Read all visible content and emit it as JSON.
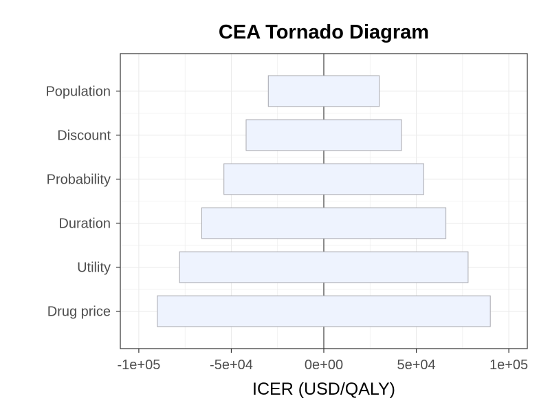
{
  "chart_data": {
    "type": "bar",
    "orientation": "horizontal",
    "title": "CEA Tornado Diagram",
    "xlabel": "ICER (USD/QALY)",
    "ylabel": "",
    "categories": [
      "Population",
      "Discount",
      "Probability",
      "Duration",
      "Utility",
      "Drug price"
    ],
    "series": [
      {
        "low": [
          -30000,
          -42000,
          -54000,
          -66000,
          -78000,
          -90000
        ],
        "high": [
          30000,
          42000,
          54000,
          66000,
          78000,
          90000
        ]
      }
    ],
    "xlim": [
      -110000,
      110000
    ],
    "xticks": [
      -100000,
      -50000,
      0,
      50000,
      100000
    ],
    "xtick_labels": [
      "-1e+05",
      "-5e+04",
      "0e+00",
      "5e+04",
      "1e+05"
    ],
    "reference_line_x": 0,
    "grid": true,
    "legend": "none",
    "colors": {
      "bar_fill": "#eef3fe",
      "bar_stroke": "#a6a6ad",
      "grid": "#ebebeb",
      "panel_border": "#333333",
      "reference_line": "#4d4d4d"
    }
  }
}
